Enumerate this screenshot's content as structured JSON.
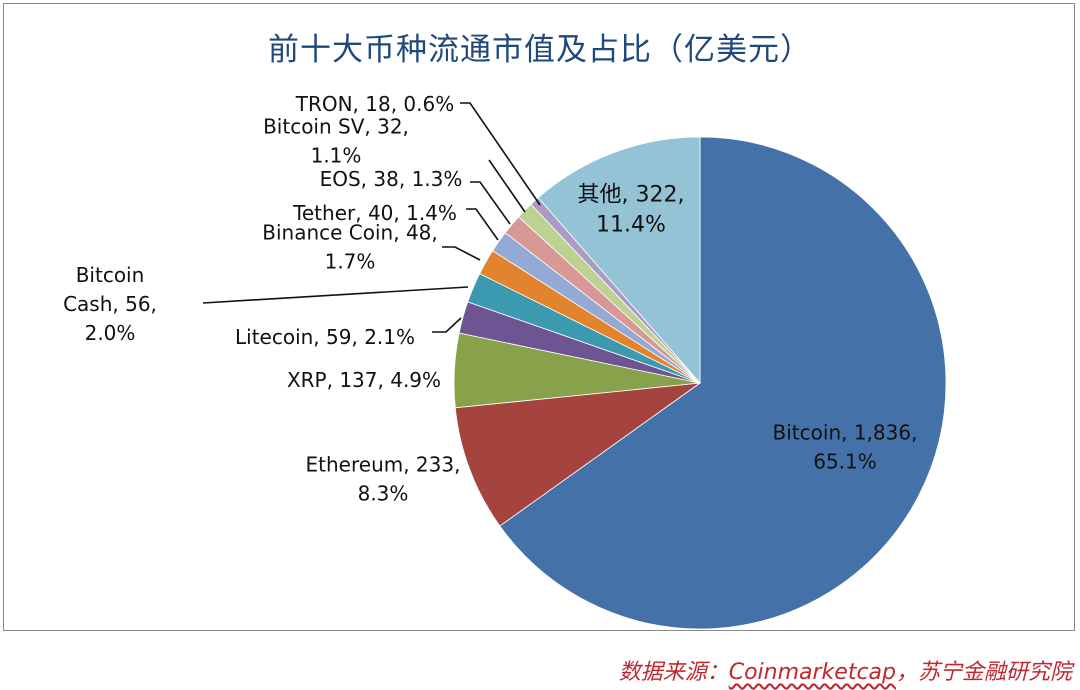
{
  "chart_data": {
    "type": "pie",
    "title": "前十大币种流通市值及占比（亿美元）",
    "unit": "亿美元",
    "start_angle_deg": 0,
    "direction": "clockwise",
    "slices": [
      {
        "name": "Bitcoin",
        "value": 1836,
        "value_text": "1,836",
        "percent": 65.1,
        "percent_text": "65.1%",
        "color": "#4472a8"
      },
      {
        "name": "Ethereum",
        "value": 233,
        "value_text": "233",
        "percent": 8.3,
        "percent_text": "8.3%",
        "color": "#a5443f"
      },
      {
        "name": "XRP",
        "value": 137,
        "value_text": "137",
        "percent": 4.9,
        "percent_text": "4.9%",
        "color": "#87a24b"
      },
      {
        "name": "Litecoin",
        "value": 59,
        "value_text": "59",
        "percent": 2.1,
        "percent_text": "2.1%",
        "color": "#6d5493"
      },
      {
        "name": "Bitcoin Cash",
        "value": 56,
        "value_text": "56",
        "percent": 2.0,
        "percent_text": "2.0%",
        "color": "#3c9ab0"
      },
      {
        "name": "Binance Coin",
        "value": 48,
        "value_text": "48",
        "percent": 1.7,
        "percent_text": "1.7%",
        "color": "#e2842e"
      },
      {
        "name": "Tether",
        "value": 40,
        "value_text": "40",
        "percent": 1.4,
        "percent_text": "1.4%",
        "color": "#94aad4"
      },
      {
        "name": "EOS",
        "value": 38,
        "value_text": "38",
        "percent": 1.3,
        "percent_text": "1.3%",
        "color": "#d89896"
      },
      {
        "name": "Bitcoin SV",
        "value": 32,
        "value_text": "32",
        "percent": 1.1,
        "percent_text": "1.1%",
        "color": "#bdd193"
      },
      {
        "name": "TRON",
        "value": 18,
        "value_text": "18",
        "percent": 0.6,
        "percent_text": "0.6%",
        "color": "#a99bc2"
      },
      {
        "name": "其他",
        "value": 322,
        "value_text": "322",
        "percent": 11.4,
        "percent_text": "11.4%",
        "color": "#93c3d5"
      }
    ]
  },
  "source": {
    "prefix": "数据来源：",
    "name": "Coinmarketcap",
    "suffix": "，苏宁金融研究院"
  }
}
